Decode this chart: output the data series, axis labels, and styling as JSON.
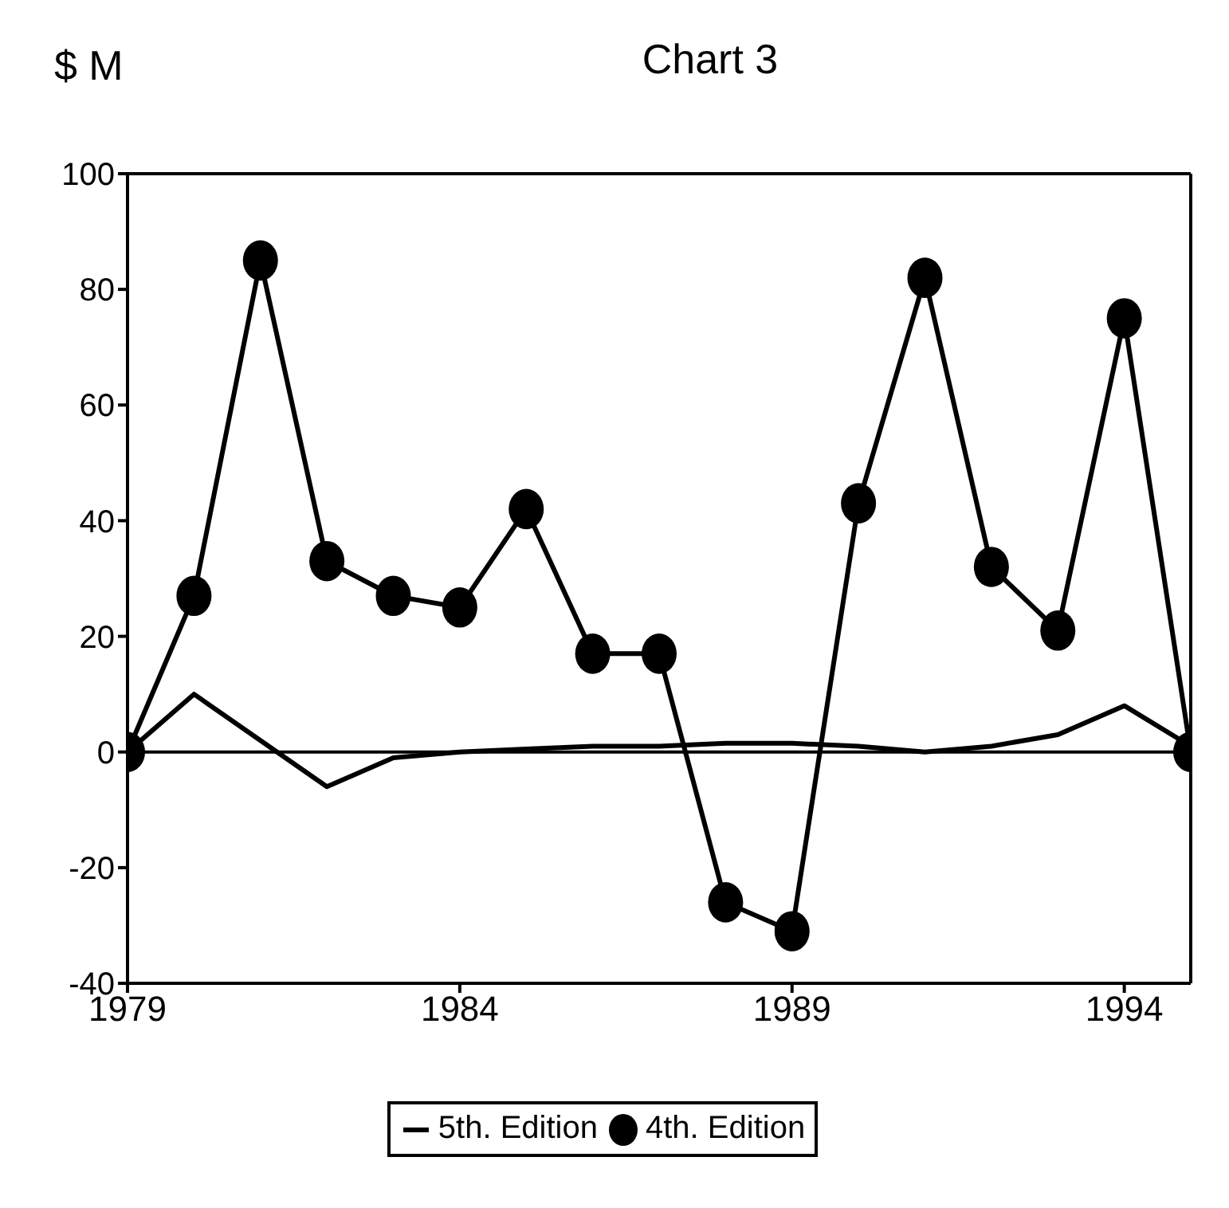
{
  "chart_data": {
    "type": "line",
    "title": "Chart 3",
    "ylabel": "$ M",
    "x": [
      1979,
      1980,
      1981,
      1982,
      1983,
      1984,
      1985,
      1986,
      1987,
      1988,
      1989,
      1990,
      1991,
      1992,
      1993,
      1994,
      1995
    ],
    "series": [
      {
        "name": "5th. Edition",
        "color": "#000000",
        "marker": "none",
        "values": [
          0,
          10,
          2,
          -6,
          -1,
          0,
          0.5,
          1,
          1,
          1.5,
          1.5,
          1,
          0,
          1,
          3,
          8,
          1
        ]
      },
      {
        "name": "4th. Edition",
        "color": "#000000",
        "marker": "circle",
        "values": [
          0,
          27,
          85,
          33,
          27,
          25,
          42,
          17,
          17,
          -26,
          -31,
          43,
          82,
          32,
          21,
          75,
          0
        ]
      }
    ],
    "xlim": [
      1979,
      1995
    ],
    "xticks": [
      1979,
      1984,
      1989,
      1994
    ],
    "ylim": [
      -40,
      100
    ],
    "yticks": [
      -40,
      -20,
      0,
      20,
      40,
      60,
      80,
      100
    ],
    "ref_lines": [
      {
        "axis": "y",
        "value": 0,
        "color": "#000000"
      }
    ],
    "grid": false,
    "legend": "bottom",
    "line_style": "solid"
  }
}
